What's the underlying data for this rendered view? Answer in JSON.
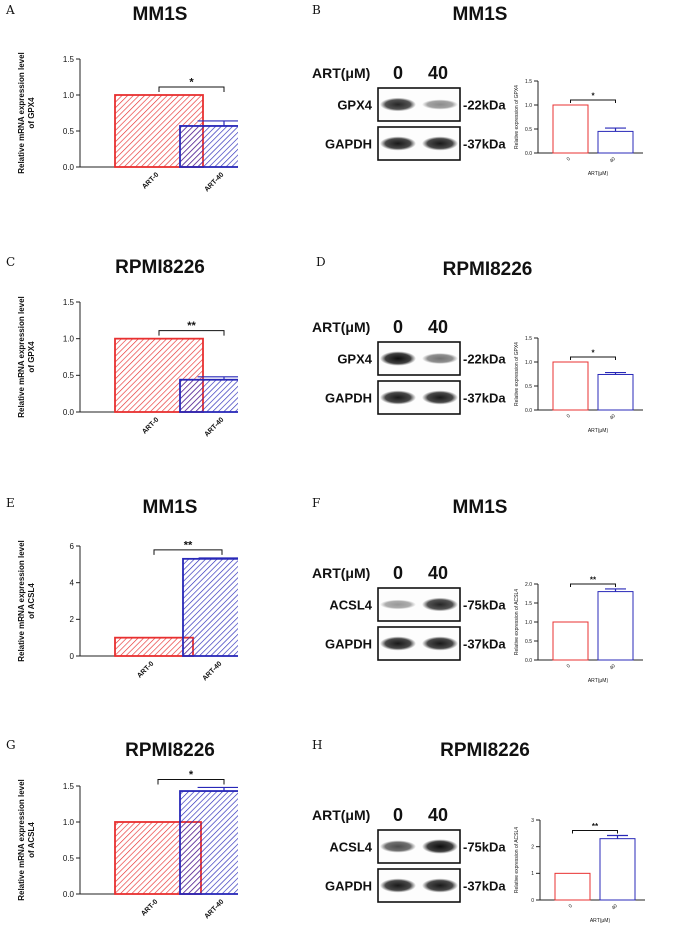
{
  "figure": {
    "panels": [
      {
        "label": "A",
        "title": "MM1S"
      },
      {
        "label": "B",
        "title": "MM1S"
      },
      {
        "label": "C",
        "title": "RPMI8226"
      },
      {
        "label": "D",
        "title": "RPMI8226"
      },
      {
        "label": "E",
        "title": "MM1S"
      },
      {
        "label": "F",
        "title": "MM1S"
      },
      {
        "label": "G",
        "title": "RPMI8226"
      },
      {
        "label": "H",
        "title": "RPMI8226"
      }
    ]
  },
  "chart_data": [
    {
      "id": "A",
      "type": "bar",
      "title": "MM1S",
      "ylabel": "Relative mRNA expression level of GPX4",
      "xlabel": "",
      "categories": [
        "ART-0",
        "ART-40"
      ],
      "values": [
        1.0,
        0.57
      ],
      "errors": [
        0,
        0.07
      ],
      "ylim": [
        0,
        1.5
      ],
      "yticks": [
        0.0,
        0.5,
        1.0,
        1.5
      ],
      "significance": "*",
      "colors": [
        "#e83030",
        "#2828b8"
      ],
      "style": "hatched"
    },
    {
      "id": "B",
      "type": "bar",
      "title": "",
      "ylabel": "Relative expression of GPX4",
      "xlabel": "ART(μM)",
      "categories": [
        "0",
        "40"
      ],
      "values": [
        1.0,
        0.45
      ],
      "errors": [
        0,
        0.07
      ],
      "ylim": [
        0,
        1.5
      ],
      "yticks": [
        0.0,
        0.5,
        1.0,
        1.5
      ],
      "significance": "*",
      "colors": [
        "#e83030",
        "#2828b8"
      ],
      "style": "open"
    },
    {
      "id": "C",
      "type": "bar",
      "title": "RPMI8226",
      "ylabel": "Relative mRNA expression level of GPX4",
      "xlabel": "",
      "categories": [
        "ART-0",
        "ART-40"
      ],
      "values": [
        1.0,
        0.44
      ],
      "errors": [
        0,
        0.04
      ],
      "ylim": [
        0,
        1.5
      ],
      "yticks": [
        0.0,
        0.5,
        1.0,
        1.5
      ],
      "significance": "**",
      "colors": [
        "#e83030",
        "#2828b8"
      ],
      "style": "hatched"
    },
    {
      "id": "D",
      "type": "bar",
      "title": "",
      "ylabel": "Relative expression of GPX4",
      "xlabel": "ART(μM)",
      "categories": [
        "0",
        "40"
      ],
      "values": [
        1.0,
        0.74
      ],
      "errors": [
        0,
        0.04
      ],
      "ylim": [
        0,
        1.5
      ],
      "yticks": [
        0.0,
        0.5,
        1.0,
        1.5
      ],
      "significance": "*",
      "colors": [
        "#e83030",
        "#2828b8"
      ],
      "style": "open"
    },
    {
      "id": "E",
      "type": "bar",
      "title": "MM1S",
      "ylabel": "Relative mRNA expression level of ACSL4",
      "xlabel": "",
      "categories": [
        "ART-0",
        "ART-40"
      ],
      "values": [
        1.0,
        5.3
      ],
      "errors": [
        0,
        0.05
      ],
      "ylim": [
        0,
        6
      ],
      "yticks": [
        0,
        2,
        4,
        6
      ],
      "significance": "**",
      "colors": [
        "#e83030",
        "#2828b8"
      ],
      "style": "hatched"
    },
    {
      "id": "F",
      "type": "bar",
      "title": "",
      "ylabel": "Relative expression of ACSL4",
      "xlabel": "ART(μM)",
      "categories": [
        "0",
        "40"
      ],
      "values": [
        1.0,
        1.8
      ],
      "errors": [
        0,
        0.07
      ],
      "ylim": [
        0,
        2.0
      ],
      "yticks": [
        0.0,
        0.5,
        1.0,
        1.5,
        2.0
      ],
      "significance": "**",
      "colors": [
        "#e83030",
        "#2828b8"
      ],
      "style": "open"
    },
    {
      "id": "G",
      "type": "bar",
      "title": "RPMI8226",
      "ylabel": "Relative mRNA expression level of ACSL4",
      "xlabel": "",
      "categories": [
        "ART-0",
        "ART-40"
      ],
      "values": [
        1.0,
        1.43
      ],
      "errors": [
        0,
        0.05
      ],
      "ylim": [
        0,
        1.5
      ],
      "yticks": [
        0.0,
        0.5,
        1.0,
        1.5
      ],
      "significance": "*",
      "colors": [
        "#e83030",
        "#2828b8"
      ],
      "style": "hatched"
    },
    {
      "id": "H",
      "type": "bar",
      "title": "",
      "ylabel": "Relative expression of ACSL4",
      "xlabel": "ART(μM)",
      "categories": [
        "0",
        "40"
      ],
      "values": [
        1.0,
        2.3
      ],
      "errors": [
        0,
        0.12
      ],
      "ylim": [
        0,
        3
      ],
      "yticks": [
        0,
        1,
        2,
        3
      ],
      "significance": "**",
      "colors": [
        "#e83030",
        "#2828b8"
      ],
      "style": "open"
    }
  ],
  "blots": [
    {
      "id": "B",
      "treatment_label": "ART(μM)",
      "lanes": [
        "0",
        "40"
      ],
      "rows": [
        {
          "protein": "GPX4",
          "size": "-22kDa"
        },
        {
          "protein": "GAPDH",
          "size": "-37kDa"
        }
      ],
      "intensities": [
        [
          0.85,
          0.45
        ],
        [
          0.9,
          0.9
        ]
      ]
    },
    {
      "id": "D",
      "treatment_label": "ART(μM)",
      "lanes": [
        "0",
        "40"
      ],
      "rows": [
        {
          "protein": "GPX4",
          "size": "-22kDa"
        },
        {
          "protein": "GAPDH",
          "size": "-37kDa"
        }
      ],
      "intensities": [
        [
          0.95,
          0.55
        ],
        [
          0.9,
          0.9
        ]
      ]
    },
    {
      "id": "F",
      "treatment_label": "ART(μM)",
      "lanes": [
        "0",
        "40"
      ],
      "rows": [
        {
          "protein": "ACSL4",
          "size": "-75kDa"
        },
        {
          "protein": "GAPDH",
          "size": "-37kDa"
        }
      ],
      "intensities": [
        [
          0.4,
          0.85
        ],
        [
          0.9,
          0.9
        ]
      ]
    },
    {
      "id": "H",
      "treatment_label": "ART(μM)",
      "lanes": [
        "0",
        "40"
      ],
      "rows": [
        {
          "protein": "ACSL4",
          "size": "-75kDa"
        },
        {
          "protein": "GAPDH",
          "size": "-37kDa"
        }
      ],
      "intensities": [
        [
          0.7,
          0.95
        ],
        [
          0.9,
          0.9
        ]
      ]
    }
  ]
}
